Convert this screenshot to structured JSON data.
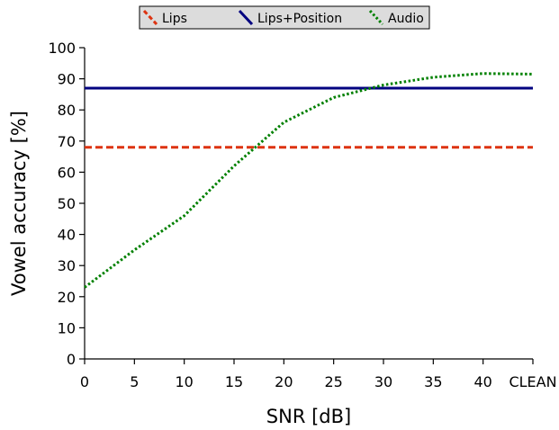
{
  "chart_data": {
    "type": "line",
    "title": "",
    "xlabel": "SNR [dB]",
    "ylabel": "Vowel accuracy [%]",
    "x_tick_labels": [
      "0",
      "5",
      "10",
      "15",
      "20",
      "25",
      "30",
      "35",
      "40",
      "CLEAN"
    ],
    "y_ticks": [
      0,
      10,
      20,
      30,
      40,
      50,
      60,
      70,
      80,
      90,
      100
    ],
    "ylim": [
      0,
      100
    ],
    "grid": false,
    "legend_position": "top-center",
    "series": [
      {
        "name": "Lips",
        "color": "#dd3311",
        "style": "dashed",
        "x": [
          0,
          5,
          10,
          15,
          20,
          25,
          30,
          35,
          40,
          45
        ],
        "values": [
          68,
          68,
          68,
          68,
          68,
          68,
          68,
          68,
          68,
          68
        ]
      },
      {
        "name": "Lips+Position",
        "color": "#000080",
        "style": "solid",
        "x": [
          0,
          5,
          10,
          15,
          20,
          25,
          30,
          35,
          40,
          45
        ],
        "values": [
          87,
          87,
          87,
          87,
          87,
          87,
          87,
          87,
          87,
          87
        ]
      },
      {
        "name": "Audio",
        "color": "#008000",
        "style": "dotted",
        "x": [
          0,
          5,
          10,
          15,
          20,
          25,
          30,
          35,
          40,
          45
        ],
        "values": [
          23,
          35,
          46,
          62,
          76,
          84,
          88,
          90.5,
          91.7,
          91.5
        ]
      }
    ]
  }
}
